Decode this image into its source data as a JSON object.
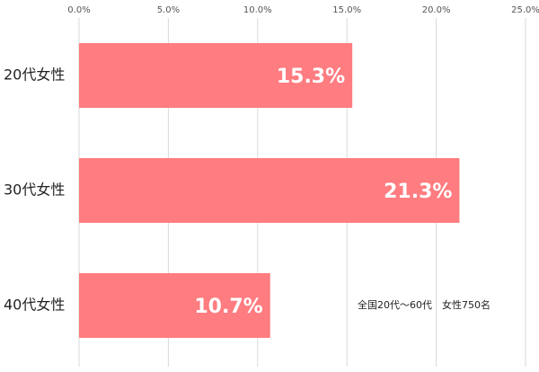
{
  "chart_data": {
    "type": "bar",
    "orientation": "horizontal",
    "categories": [
      "20代女性",
      "30代女性",
      "40代女性"
    ],
    "values": [
      15.3,
      21.3,
      10.7
    ],
    "value_labels": [
      "15.3%",
      "21.3%",
      "10.7%"
    ],
    "color": "#ff7c80",
    "xlim": [
      0,
      25
    ],
    "xticks": [
      {
        "value": 0,
        "label": "0.0%"
      },
      {
        "value": 5,
        "label": "5.0%"
      },
      {
        "value": 10,
        "label": "10.0%"
      },
      {
        "value": 15,
        "label": "15.0%"
      },
      {
        "value": 20,
        "label": "20.0%"
      },
      {
        "value": 25,
        "label": "25.0%"
      }
    ],
    "grid": true,
    "annotation": "全国20代～60代　女性750名"
  }
}
